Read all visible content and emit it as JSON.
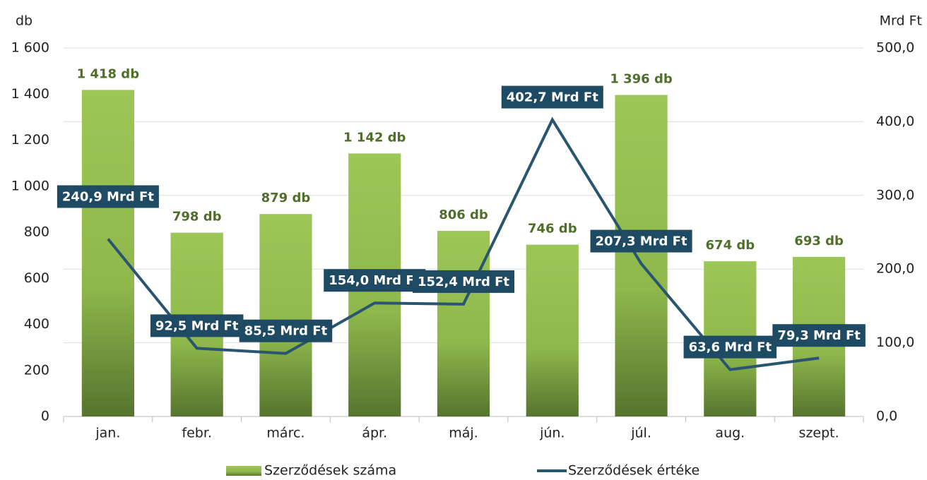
{
  "chart_data": {
    "type": "bar_line",
    "y_label": "db",
    "y2_label": "Mrd Ft",
    "categories": [
      "jan.",
      "febr.",
      "márc.",
      "ápr.",
      "máj.",
      "jún.",
      "júl.",
      "aug.",
      "szept."
    ],
    "series": [
      {
        "name": "Szerződések száma",
        "type": "bar",
        "color": "#96c150",
        "values": [
          1418,
          798,
          879,
          1142,
          806,
          746,
          1396,
          674,
          693
        ],
        "value_labels": [
          "1 418 db",
          "798 db",
          "879 db",
          "1 142 db",
          "806 db",
          "746 db",
          "1 396 db",
          "674 db",
          "693 db"
        ]
      },
      {
        "name": "Szerződések értéke",
        "type": "line",
        "axis": "y2",
        "color": "#2a5570",
        "values": [
          240.9,
          92.5,
          85.5,
          154.0,
          152.4,
          402.7,
          207.3,
          63.6,
          79.3
        ],
        "value_labels": [
          "240,9 Mrd Ft",
          "92,5 Mrd Ft",
          "85,5 Mrd Ft",
          "154,0 Mrd Ft",
          "152,4 Mrd Ft",
          "402,7 Mrd Ft",
          "207,3 Mrd Ft",
          "63,6 Mrd Ft",
          "79,3 Mrd Ft"
        ]
      }
    ],
    "ylim": [
      0,
      1600
    ],
    "yticks": [
      0,
      200,
      400,
      600,
      800,
      {
        "value": 1000,
        "label": "1 000"
      },
      {
        "value": 1200,
        "label": "1 200"
      },
      {
        "value": 1400,
        "label": "1 400"
      },
      {
        "value": 1600,
        "label": "1 600"
      }
    ],
    "y2lim": [
      0,
      500
    ],
    "y2ticks": [
      {
        "value": 0,
        "label": "0,0"
      },
      {
        "value": 100,
        "label": "100,0"
      },
      {
        "value": 200,
        "label": "200,0"
      },
      {
        "value": 300,
        "label": "300,0"
      },
      {
        "value": 400,
        "label": "400,0"
      },
      {
        "value": 500,
        "label": "500,0"
      }
    ],
    "grid": true
  }
}
